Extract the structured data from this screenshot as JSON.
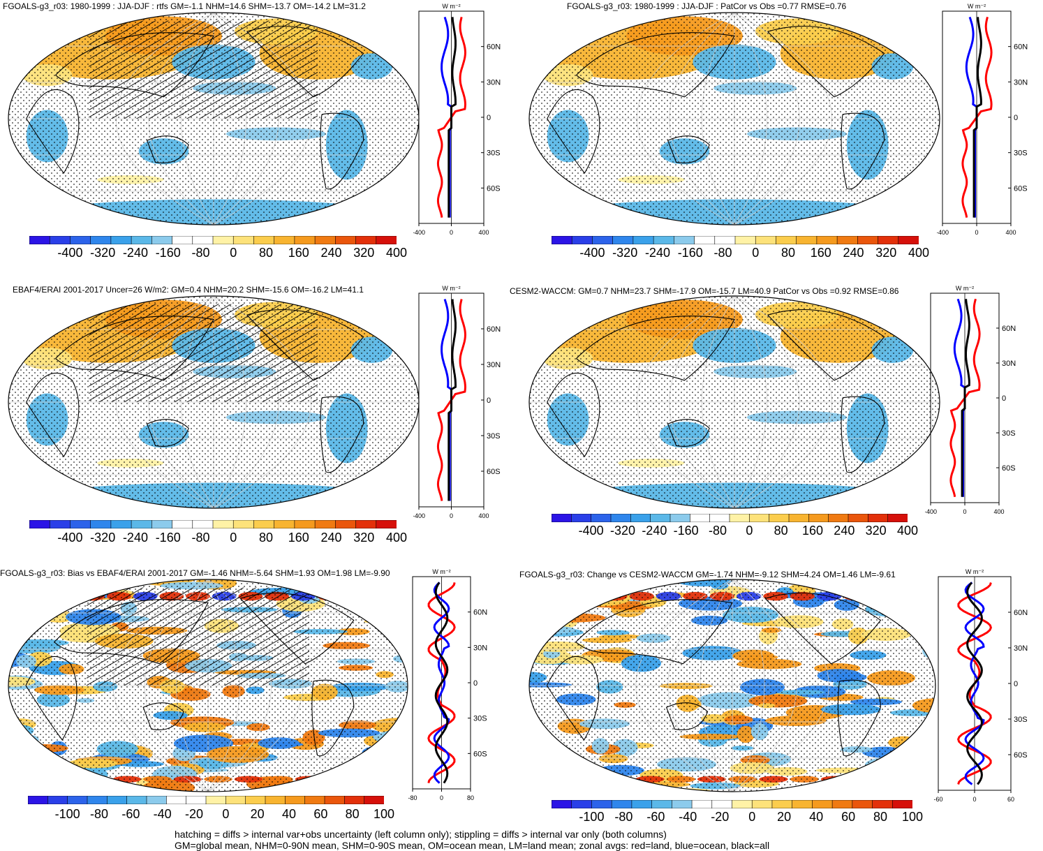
{
  "panels": [
    {
      "title": "FGOALS-g3_r03: 1980-1999 : JJA-DJF : rtfs GM=-1.1 NHM=14.6 SHM=-13.7 OM=-14.2 LM=31.2",
      "hatching": true,
      "colorbar": {
        "labels": [
          "-400",
          "-320",
          "-240",
          "-160",
          "-80",
          "0",
          "80",
          "160",
          "240",
          "320",
          "400"
        ]
      },
      "zonal": {
        "unit": "W m⁻²",
        "xlabels": [
          "-400",
          "0",
          "400"
        ],
        "lat_labels": [
          "60N",
          "30N",
          "0",
          "30S",
          "60S"
        ]
      }
    },
    {
      "title": "FGOALS-g3_r03: 1980-1999 : JJA-DJF : PatCor vs Obs =0.77 RMSE=0.76",
      "hatching": false,
      "colorbar": {
        "labels": [
          "-400",
          "-320",
          "-240",
          "-160",
          "-80",
          "0",
          "80",
          "160",
          "240",
          "320",
          "400"
        ]
      },
      "zonal": {
        "unit": "W m⁻²",
        "xlabels": [
          "-400",
          "0",
          "400"
        ],
        "lat_labels": [
          "60N",
          "30N",
          "0",
          "30S",
          "60S"
        ]
      }
    },
    {
      "title": "EBAF4/ERAI 2001-2017 Uncer=26 W/m2: GM=0.4 NHM=20.2 SHM=-15.6 OM=-16.2 LM=41.1",
      "hatching": true,
      "colorbar": {
        "labels": [
          "-400",
          "-320",
          "-240",
          "-160",
          "-80",
          "0",
          "80",
          "160",
          "240",
          "320",
          "400"
        ]
      },
      "zonal": {
        "unit": "W m⁻²",
        "xlabels": [
          "-400",
          "0",
          "400"
        ],
        "lat_labels": [
          "60N",
          "30N",
          "0",
          "30S",
          "60S"
        ]
      }
    },
    {
      "title": "CESM2-WACCM: GM=0.7 NHM=23.7 SHM=-17.9 OM=-15.7 LM=40.9 PatCor vs Obs =0.92 RMSE=0.86",
      "hatching": false,
      "colorbar": {
        "labels": [
          "-400",
          "-320",
          "-240",
          "-160",
          "-80",
          "0",
          "80",
          "160",
          "240",
          "320",
          "400"
        ]
      },
      "zonal": {
        "unit": "W m⁻²",
        "xlabels": [
          "-400",
          "0",
          "400"
        ],
        "lat_labels": [
          "60N",
          "30N",
          "0",
          "30S",
          "60S"
        ]
      }
    },
    {
      "title": "FGOALS-g3_r03: Bias vs EBAF4/ERAI 2001-2017 GM=-1.46 NHM=-5.64 SHM=1.93 OM=1.98 LM=-9.90",
      "hatching": true,
      "colorbar": {
        "labels": [
          "-100",
          "-80",
          "-60",
          "-40",
          "-20",
          "0",
          "20",
          "40",
          "60",
          "80",
          "100"
        ]
      },
      "zonal": {
        "unit": "W m⁻²",
        "xlabels": [
          "-80",
          "0",
          "80"
        ],
        "lat_labels": [
          "60N",
          "30N",
          "0",
          "30S",
          "60S"
        ]
      }
    },
    {
      "title": "FGOALS-g3_r03: Change vs CESM2-WACCM GM=-1.74 NHM=-9.12 SHM=4.24 OM=1.46 LM=-9.61",
      "hatching": false,
      "colorbar": {
        "labels": [
          "-100",
          "-80",
          "-60",
          "-40",
          "-20",
          "0",
          "20",
          "40",
          "60",
          "80",
          "100"
        ]
      },
      "zonal": {
        "unit": "W m⁻²",
        "xlabels": [
          "-60",
          "0",
          "60"
        ],
        "lat_labels": [
          "60N",
          "30N",
          "0",
          "30S",
          "60S"
        ]
      }
    }
  ],
  "colors": {
    "scale": [
      "#2b14e6",
      "#2a3fe8",
      "#2c63ea",
      "#2f86ec",
      "#3aa1ea",
      "#5bb8e8",
      "#8ccbec",
      "#ffffff",
      "#ffffff",
      "#fff2a6",
      "#fde27a",
      "#fbcd4d",
      "#f8b430",
      "#f59a1e",
      "#f07a12",
      "#ea560c",
      "#e3300a",
      "#d6100a"
    ],
    "land_line": "#000000",
    "zonal_land": "#ff0000",
    "zonal_ocean": "#0000ff",
    "zonal_all": "#000000"
  },
  "footer": {
    "line1": "hatching = diffs > internal var+obs uncertainty (left column only); stippling = diffs > internal var only (both columns)",
    "line2": "GM=global mean, NHM=0-90N mean, SHM=0-90S mean, OM=ocean mean, LM=land mean; zonal avgs: red=land, blue=ocean, black=all"
  }
}
